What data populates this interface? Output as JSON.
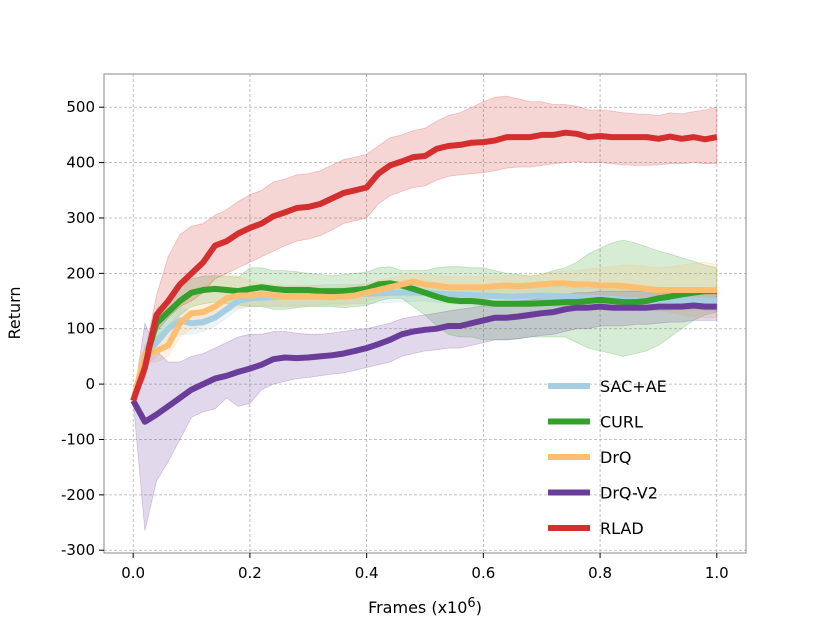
{
  "chart_data": {
    "type": "line",
    "title": "",
    "xlabel": "Frames (x10",
    "xlabel_exponent": "6",
    "xlabel_suffix": ")",
    "ylabel": "Return",
    "xlim": [
      -0.05,
      1.05
    ],
    "ylim": [
      -305,
      560
    ],
    "xticks": [
      0.0,
      0.2,
      0.4,
      0.6,
      0.8,
      1.0
    ],
    "xtick_labels": [
      "0.0",
      "0.2",
      "0.4",
      "0.6",
      "0.8",
      "1.0"
    ],
    "yticks": [
      -300,
      -200,
      -100,
      0,
      100,
      200,
      300,
      400,
      500
    ],
    "ytick_labels": [
      "-300",
      "-200",
      "-100",
      "0",
      "100",
      "200",
      "300",
      "400",
      "500"
    ],
    "grid": true,
    "legend_position": "lower-right",
    "series": [
      {
        "name": "SAC+AE",
        "color": "#a6cee3",
        "x": [
          0.0,
          0.02,
          0.04,
          0.06,
          0.08,
          0.1,
          0.12,
          0.14,
          0.16,
          0.18,
          0.2,
          0.25,
          0.3,
          0.35,
          0.4,
          0.45,
          0.5,
          0.55,
          0.6,
          0.65,
          0.7,
          0.75,
          0.8,
          0.85,
          0.9,
          0.95,
          1.0
        ],
        "y": [
          -30,
          50,
          75,
          100,
          115,
          110,
          112,
          120,
          135,
          150,
          155,
          158,
          160,
          162,
          163,
          165,
          165,
          162,
          160,
          158,
          160,
          158,
          155,
          152,
          150,
          152,
          150
        ],
        "lower": [
          -30,
          30,
          50,
          75,
          90,
          90,
          95,
          105,
          120,
          135,
          140,
          140,
          142,
          145,
          145,
          148,
          150,
          145,
          140,
          140,
          142,
          140,
          138,
          135,
          132,
          135,
          132
        ],
        "upper": [
          -30,
          70,
          100,
          125,
          140,
          130,
          130,
          135,
          150,
          165,
          170,
          175,
          178,
          180,
          180,
          182,
          180,
          178,
          178,
          175,
          178,
          175,
          172,
          170,
          168,
          170,
          168
        ]
      },
      {
        "name": "CURL",
        "color": "#33a02c",
        "x": [
          0.0,
          0.02,
          0.04,
          0.06,
          0.08,
          0.1,
          0.12,
          0.14,
          0.16,
          0.18,
          0.2,
          0.22,
          0.24,
          0.26,
          0.28,
          0.3,
          0.32,
          0.34,
          0.36,
          0.38,
          0.4,
          0.42,
          0.44,
          0.46,
          0.48,
          0.5,
          0.52,
          0.54,
          0.56,
          0.58,
          0.6,
          0.62,
          0.64,
          0.66,
          0.68,
          0.7,
          0.72,
          0.74,
          0.76,
          0.78,
          0.8,
          0.82,
          0.84,
          0.86,
          0.88,
          0.9,
          0.92,
          0.94,
          0.96,
          0.98,
          1.0
        ],
        "y": [
          -30,
          40,
          110,
          130,
          150,
          165,
          170,
          172,
          170,
          168,
          172,
          175,
          172,
          170,
          170,
          170,
          168,
          168,
          168,
          170,
          172,
          180,
          182,
          178,
          172,
          165,
          158,
          152,
          150,
          150,
          148,
          145,
          145,
          145,
          145,
          146,
          147,
          148,
          148,
          150,
          152,
          150,
          148,
          148,
          150,
          155,
          158,
          162,
          165,
          168,
          168
        ],
        "lower": [
          -30,
          20,
          85,
          105,
          125,
          140,
          145,
          148,
          145,
          143,
          140,
          140,
          135,
          135,
          138,
          140,
          140,
          140,
          138,
          140,
          142,
          150,
          155,
          155,
          140,
          125,
          105,
          90,
          85,
          85,
          80,
          80,
          80,
          82,
          85,
          85,
          85,
          85,
          75,
          65,
          60,
          55,
          50,
          55,
          60,
          70,
          85,
          100,
          115,
          125,
          130
        ],
        "upper": [
          -30,
          60,
          135,
          155,
          175,
          190,
          195,
          196,
          195,
          193,
          210,
          210,
          205,
          205,
          203,
          200,
          198,
          196,
          198,
          200,
          202,
          210,
          212,
          205,
          205,
          205,
          210,
          212,
          212,
          210,
          210,
          205,
          200,
          198,
          195,
          198,
          205,
          210,
          220,
          235,
          245,
          255,
          260,
          255,
          248,
          240,
          235,
          228,
          222,
          215,
          210
        ]
      },
      {
        "name": "DrQ",
        "color": "#fdbf6f",
        "x": [
          0.0,
          0.02,
          0.04,
          0.06,
          0.08,
          0.1,
          0.12,
          0.14,
          0.16,
          0.18,
          0.2,
          0.22,
          0.24,
          0.26,
          0.28,
          0.3,
          0.32,
          0.34,
          0.36,
          0.38,
          0.4,
          0.42,
          0.44,
          0.46,
          0.48,
          0.5,
          0.52,
          0.54,
          0.56,
          0.58,
          0.6,
          0.62,
          0.64,
          0.66,
          0.68,
          0.7,
          0.72,
          0.74,
          0.76,
          0.78,
          0.8,
          0.82,
          0.84,
          0.86,
          0.88,
          0.9,
          0.92,
          0.94,
          0.96,
          0.98,
          1.0
        ],
        "y": [
          -30,
          55,
          60,
          70,
          110,
          128,
          130,
          140,
          155,
          160,
          160,
          162,
          160,
          158,
          158,
          158,
          158,
          157,
          158,
          160,
          165,
          170,
          175,
          180,
          185,
          180,
          178,
          175,
          175,
          175,
          175,
          177,
          178,
          177,
          178,
          180,
          182,
          182,
          180,
          180,
          178,
          178,
          177,
          175,
          172,
          170,
          170,
          170,
          170,
          170,
          170
        ],
        "lower": [
          -30,
          40,
          40,
          50,
          85,
          100,
          105,
          115,
          130,
          138,
          140,
          142,
          142,
          140,
          140,
          140,
          142,
          142,
          142,
          145,
          150,
          155,
          160,
          162,
          165,
          162,
          160,
          158,
          155,
          155,
          155,
          158,
          158,
          158,
          158,
          160,
          160,
          160,
          158,
          155,
          150,
          148,
          145,
          142,
          140,
          135,
          130,
          125,
          122,
          120,
          120
        ],
        "upper": [
          -30,
          70,
          85,
          100,
          140,
          160,
          175,
          190,
          200,
          195,
          185,
          182,
          180,
          178,
          178,
          178,
          176,
          174,
          176,
          178,
          182,
          188,
          192,
          196,
          200,
          198,
          196,
          194,
          194,
          194,
          195,
          196,
          196,
          196,
          198,
          200,
          202,
          205,
          205,
          208,
          210,
          212,
          215,
          215,
          212,
          210,
          212,
          215,
          218,
          220,
          215
        ]
      },
      {
        "name": "DrQ-V2",
        "color": "#6a3d9a",
        "x": [
          0.0,
          0.02,
          0.04,
          0.06,
          0.08,
          0.1,
          0.12,
          0.14,
          0.16,
          0.18,
          0.2,
          0.22,
          0.24,
          0.26,
          0.28,
          0.3,
          0.32,
          0.34,
          0.36,
          0.38,
          0.4,
          0.42,
          0.44,
          0.46,
          0.48,
          0.5,
          0.52,
          0.54,
          0.56,
          0.58,
          0.6,
          0.62,
          0.64,
          0.66,
          0.68,
          0.7,
          0.72,
          0.74,
          0.76,
          0.78,
          0.8,
          0.82,
          0.84,
          0.86,
          0.88,
          0.9,
          0.92,
          0.94,
          0.96,
          0.98,
          1.0
        ],
        "y": [
          -30,
          -68,
          -55,
          -40,
          -25,
          -10,
          0,
          10,
          15,
          22,
          28,
          35,
          45,
          48,
          47,
          48,
          50,
          52,
          55,
          60,
          65,
          72,
          80,
          90,
          95,
          98,
          100,
          105,
          105,
          110,
          115,
          120,
          120,
          122,
          125,
          128,
          130,
          135,
          138,
          138,
          140,
          138,
          138,
          138,
          138,
          140,
          140,
          140,
          142,
          140,
          140
        ],
        "lower": [
          -30,
          -265,
          -175,
          -140,
          -100,
          -60,
          -50,
          -45,
          -25,
          -40,
          -35,
          -10,
          0,
          5,
          10,
          12,
          15,
          18,
          20,
          25,
          30,
          35,
          40,
          50,
          55,
          60,
          62,
          65,
          65,
          70,
          75,
          80,
          80,
          82,
          85,
          88,
          90,
          95,
          100,
          100,
          105,
          105,
          105,
          108,
          108,
          110,
          112,
          112,
          115,
          115,
          115
        ],
        "upper": [
          -30,
          110,
          60,
          40,
          40,
          50,
          55,
          65,
          75,
          85,
          90,
          90,
          95,
          95,
          92,
          90,
          90,
          92,
          95,
          98,
          100,
          105,
          110,
          118,
          122,
          125,
          128,
          132,
          135,
          138,
          142,
          145,
          148,
          150,
          152,
          155,
          158,
          162,
          165,
          165,
          168,
          168,
          168,
          168,
          168,
          168,
          168,
          168,
          170,
          170,
          170
        ]
      },
      {
        "name": "RLAD",
        "color": "#d32f2f",
        "x": [
          0.0,
          0.02,
          0.04,
          0.06,
          0.08,
          0.1,
          0.12,
          0.14,
          0.16,
          0.18,
          0.2,
          0.22,
          0.24,
          0.26,
          0.28,
          0.3,
          0.32,
          0.34,
          0.36,
          0.38,
          0.4,
          0.42,
          0.44,
          0.46,
          0.48,
          0.5,
          0.52,
          0.54,
          0.56,
          0.58,
          0.6,
          0.62,
          0.64,
          0.66,
          0.68,
          0.7,
          0.72,
          0.74,
          0.76,
          0.78,
          0.8,
          0.82,
          0.84,
          0.86,
          0.88,
          0.9,
          0.92,
          0.94,
          0.96,
          0.98,
          1.0
        ],
        "y": [
          -30,
          30,
          125,
          150,
          180,
          200,
          220,
          250,
          258,
          272,
          282,
          290,
          303,
          310,
          318,
          320,
          325,
          335,
          345,
          350,
          355,
          380,
          395,
          402,
          410,
          412,
          425,
          430,
          432,
          436,
          437,
          440,
          446,
          446,
          446,
          450,
          450,
          454,
          452,
          446,
          448,
          446,
          446,
          446,
          446,
          443,
          447,
          443,
          446,
          442,
          446
        ],
        "lower": [
          -30,
          10,
          95,
          120,
          140,
          150,
          165,
          190,
          200,
          210,
          220,
          230,
          240,
          250,
          258,
          262,
          268,
          278,
          290,
          295,
          300,
          325,
          340,
          348,
          355,
          358,
          368,
          375,
          378,
          380,
          382,
          385,
          390,
          392,
          392,
          395,
          398,
          400,
          402,
          400,
          400,
          398,
          396,
          395,
          395,
          396,
          398,
          398,
          400,
          398,
          398
        ],
        "upper": [
          -30,
          55,
          160,
          230,
          270,
          285,
          290,
          305,
          315,
          330,
          342,
          350,
          365,
          370,
          378,
          380,
          385,
          395,
          405,
          410,
          415,
          430,
          445,
          450,
          458,
          462,
          475,
          485,
          490,
          500,
          510,
          518,
          520,
          515,
          510,
          510,
          505,
          505,
          502,
          495,
          495,
          493,
          490,
          488,
          487,
          485,
          490,
          488,
          492,
          495,
          500
        ]
      }
    ]
  }
}
